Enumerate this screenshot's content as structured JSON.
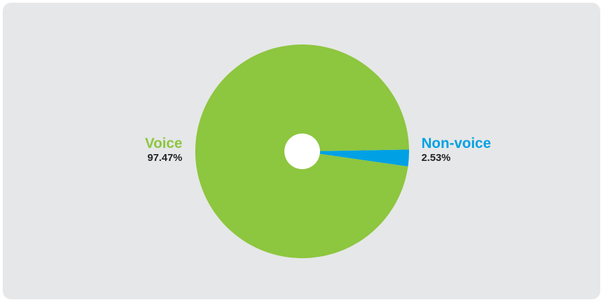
{
  "chart_data": {
    "type": "pie",
    "categories": [
      "Voice",
      "Non-voice"
    ],
    "values": [
      97.47,
      2.53
    ],
    "labels": [
      "97.47%",
      "2.53%"
    ],
    "colors": [
      "#8dc63f",
      "#00a1e4"
    ],
    "donut_hole": true
  },
  "colors": {
    "panel_background": "#e6e7e8",
    "value_text": "#222222"
  }
}
